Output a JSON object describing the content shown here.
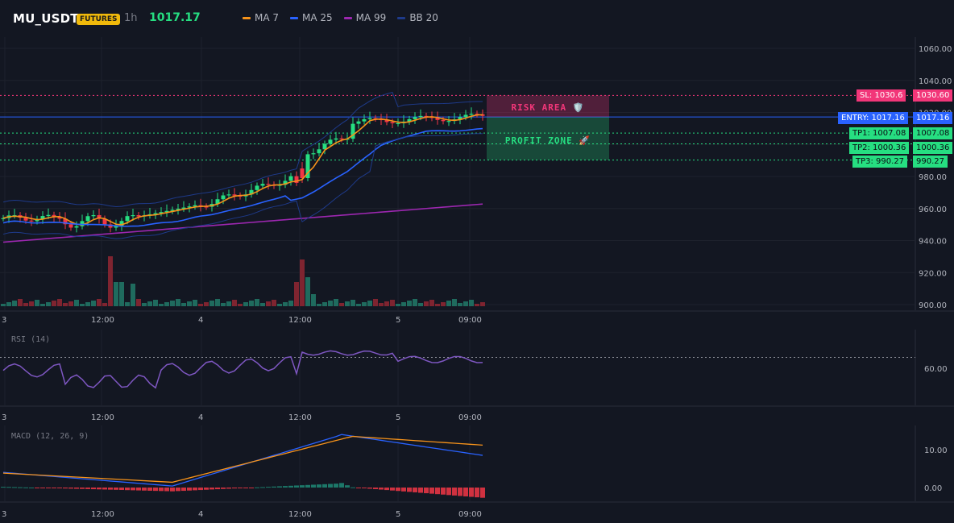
{
  "header": {
    "symbol": "MU_USDT",
    "badge": "FUTURES",
    "timeframe": "1h",
    "price": "1017.17",
    "legend": [
      {
        "label": "MA 7",
        "color": "#f7931a"
      },
      {
        "label": "MA 25",
        "color": "#2962ff"
      },
      {
        "label": "MA 99",
        "color": "#9c27b0"
      },
      {
        "label": "BB 20",
        "color": "#1e3a8a"
      }
    ]
  },
  "colors": {
    "up": "#26de81",
    "down": "#f23645",
    "vol_up": "#1f6b5e",
    "vol_down": "#7f2430"
  },
  "levels": {
    "sl": {
      "tag": "SL: 1030.6",
      "axis": "1030.60",
      "value": 1030.6
    },
    "entry": {
      "tag": "ENTRY: 1017.16",
      "axis": "1017.16",
      "value": 1017.16
    },
    "tp1": {
      "tag": "TP1: 1007.08",
      "axis": "1007.08",
      "value": 1007.08
    },
    "tp2": {
      "tag": "TP2: 1000.36",
      "axis": "1000.36",
      "value": 1000.36
    },
    "tp3": {
      "tag": "TP3: 990.27",
      "axis": "990.27",
      "value": 990.27
    }
  },
  "zones": {
    "risk": "RISK AREA 🛡️",
    "profit": "PROFIT ZONE 🚀"
  },
  "price_axis": [
    "1060.00",
    "1040.00",
    "1020.00",
    "1000.00",
    "980.00",
    "960.00",
    "940.00",
    "920.00",
    "900.00"
  ],
  "price_axis_values": [
    1060,
    1040,
    1020,
    1000,
    980,
    960,
    940,
    920,
    900
  ],
  "time_axis": [
    "3",
    "12:00",
    "4",
    "12:00",
    "5",
    "09:00"
  ],
  "rsi": {
    "label": "RSI (14)",
    "axis": [
      "60.00"
    ],
    "axis_values": [
      60
    ]
  },
  "macd": {
    "label": "MACD (12, 26, 9)",
    "axis": [
      "10.00",
      "0.00"
    ],
    "axis_values": [
      10,
      0
    ]
  }
}
